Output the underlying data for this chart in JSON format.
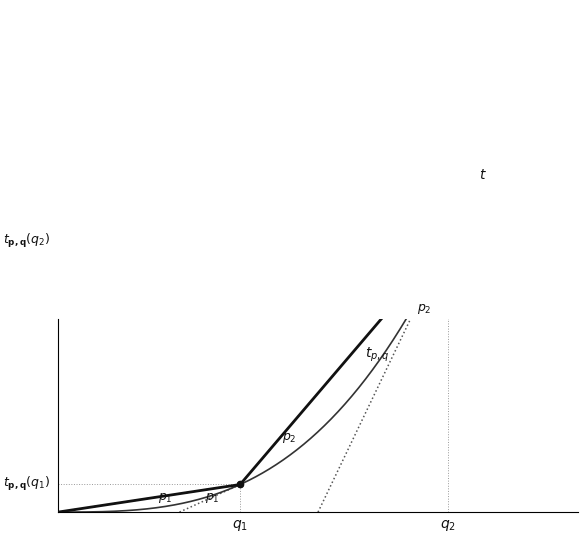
{
  "q1": 0.35,
  "q2": 0.75,
  "t_curve_power": 3.0,
  "t_curve_scale": 3.5,
  "xlim": [
    0,
    1.0
  ],
  "ylim": [
    0,
    1.05
  ],
  "plot_xlim_max": 0.88,
  "fig_width": 5.82,
  "fig_height": 5.44,
  "dpi": 100,
  "label_tpq": "$t_{p,q}$",
  "label_t": "$t$",
  "label_p1_upper": "$p_1$",
  "label_p1_lower": "$p_1$",
  "label_p2_left": "$p_2$",
  "label_p2_right": "$p_2$",
  "label_q1": "$q_1$",
  "label_q2": "$q_2$",
  "label_tpq_q1": "$t_{\\mathbf{p,q}}(q_1)$",
  "label_tpq_q2": "$t_{\\mathbf{p,q}}(q_2)$",
  "color_main": "#111111",
  "color_curve": "#333333",
  "color_dotted": "#555555",
  "color_refline": "#999999",
  "fontsize_curve_label": 10,
  "fontsize_slope_label": 9,
  "fontsize_axis_label": 10,
  "fontsize_ylabel": 9,
  "lw_piecewise": 2.0,
  "lw_curve": 1.2,
  "lw_dotted": 1.1,
  "lw_refline": 0.7
}
